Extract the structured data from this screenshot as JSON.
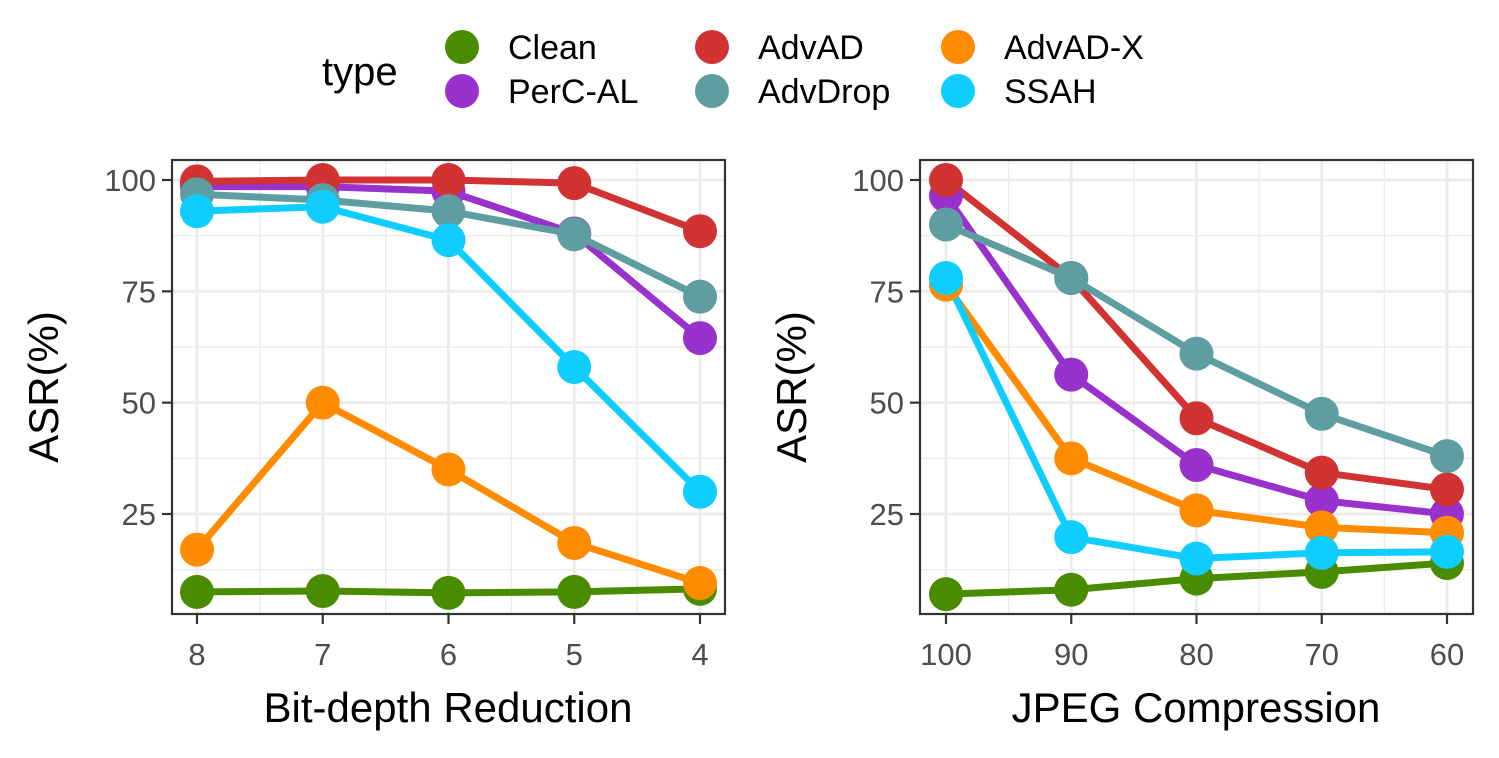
{
  "legend": {
    "title": "type",
    "entries": [
      {
        "name": "Clean",
        "color": "#4a8c00"
      },
      {
        "name": "PerC-AL",
        "color": "#9932cc"
      },
      {
        "name": "AdvAD",
        "color": "#d13232"
      },
      {
        "name": "AdvDrop",
        "color": "#5f9ea0"
      },
      {
        "name": "AdvAD-X",
        "color": "#ff8c00"
      },
      {
        "name": "SSAH",
        "color": "#10cdff"
      }
    ]
  },
  "chart_data": [
    {
      "type": "line",
      "xlabel": "Bit-depth Reduction",
      "ylabel": "ASR(%)",
      "x": [
        "8",
        "7",
        "6",
        "5",
        "4"
      ],
      "yticks": [
        25,
        50,
        75,
        100
      ],
      "ylim": [
        3,
        104
      ],
      "series": [
        {
          "name": "Clean",
          "values": [
            7.5,
            7.7,
            7.3,
            7.5,
            8.2
          ]
        },
        {
          "name": "PerC-AL",
          "values": [
            98.5,
            98.5,
            97.5,
            88,
            64.5
          ]
        },
        {
          "name": "AdvAD",
          "values": [
            99.7,
            100,
            100,
            99.3,
            88.5
          ]
        },
        {
          "name": "AdvDrop",
          "values": [
            96.8,
            95.5,
            93,
            87.8,
            73.8
          ]
        },
        {
          "name": "AdvAD-X",
          "values": [
            17,
            50,
            35,
            18.5,
            9.5
          ]
        },
        {
          "name": "SSAH",
          "values": [
            93,
            94,
            86.5,
            58,
            30
          ]
        }
      ]
    },
    {
      "type": "line",
      "xlabel": "JPEG Compression",
      "ylabel": "ASR(%)",
      "x": [
        "100",
        "90",
        "80",
        "70",
        "60"
      ],
      "yticks": [
        25,
        50,
        75,
        100
      ],
      "ylim": [
        3,
        104
      ],
      "series": [
        {
          "name": "Clean",
          "values": [
            7,
            8,
            10.5,
            12,
            14
          ]
        },
        {
          "name": "PerC-AL",
          "values": [
            96.5,
            56.3,
            36,
            28,
            25
          ]
        },
        {
          "name": "AdvAD",
          "values": [
            100,
            78,
            46.5,
            34.3,
            30.5
          ]
        },
        {
          "name": "AdvDrop",
          "values": [
            90,
            78,
            61,
            47.5,
            38
          ]
        },
        {
          "name": "AdvAD-X",
          "values": [
            76.5,
            37.5,
            25.8,
            22,
            20.8
          ]
        },
        {
          "name": "SSAH",
          "values": [
            78,
            19.8,
            15,
            16.3,
            16.5
          ]
        }
      ]
    }
  ]
}
